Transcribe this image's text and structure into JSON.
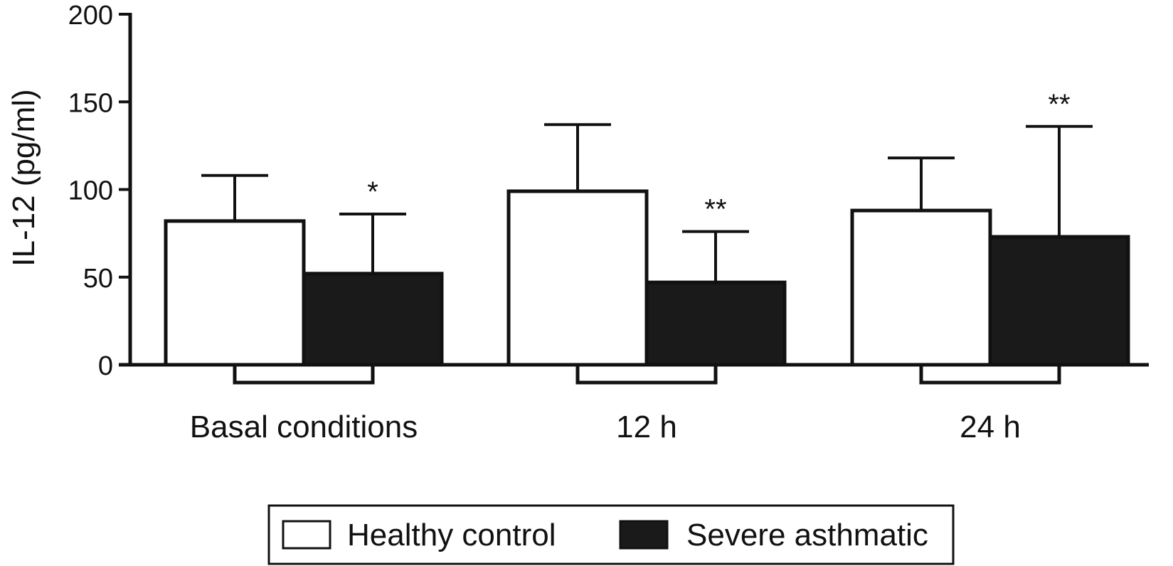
{
  "chart_data": {
    "type": "bar",
    "ylabel": "IL-12 (pg/ml)",
    "ylim": [
      0,
      200
    ],
    "yticks": [
      0,
      50,
      100,
      150,
      200
    ],
    "categories": [
      "Basal conditions",
      "12 h",
      "24 h"
    ],
    "series": [
      {
        "name": "Healthy control",
        "color": "#ffffff",
        "values": [
          82,
          99,
          88
        ],
        "error_upper": [
          108,
          137,
          118
        ]
      },
      {
        "name": "Severe asthmatic",
        "color": "#1a1a1a",
        "values": [
          52,
          47,
          73
        ],
        "error_upper": [
          86,
          76,
          136
        ]
      }
    ],
    "significance": [
      "*",
      "**",
      "**"
    ],
    "legend": {
      "position": "bottom-center",
      "framed": true
    },
    "grid": false
  }
}
